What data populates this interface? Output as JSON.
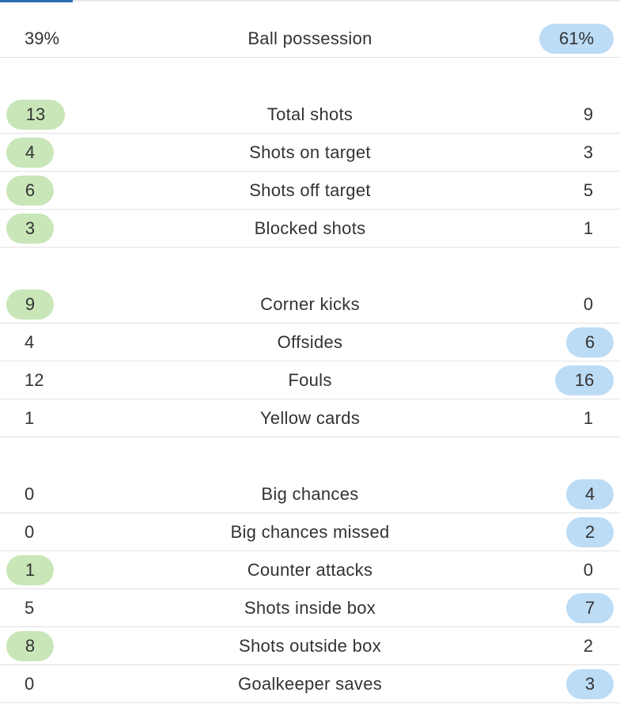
{
  "colors": {
    "home_highlight": "#c9e6b8",
    "away_highlight": "#bcdcf6",
    "tab_indicator": "#2e6db5",
    "divider": "#e3e3e3",
    "text": "#333333"
  },
  "stats": [
    {
      "home": "39%",
      "label": "Ball possession",
      "away": "61%",
      "leader": "away"
    },
    {
      "home": "13",
      "label": "Total shots",
      "away": "9",
      "leader": "home"
    },
    {
      "home": "4",
      "label": "Shots on target",
      "away": "3",
      "leader": "home"
    },
    {
      "home": "6",
      "label": "Shots off target",
      "away": "5",
      "leader": "home"
    },
    {
      "home": "3",
      "label": "Blocked shots",
      "away": "1",
      "leader": "home"
    },
    {
      "home": "9",
      "label": "Corner kicks",
      "away": "0",
      "leader": "home"
    },
    {
      "home": "4",
      "label": "Offsides",
      "away": "6",
      "leader": "away"
    },
    {
      "home": "12",
      "label": "Fouls",
      "away": "16",
      "leader": "away"
    },
    {
      "home": "1",
      "label": "Yellow cards",
      "away": "1",
      "leader": "none"
    },
    {
      "home": "0",
      "label": "Big chances",
      "away": "4",
      "leader": "away"
    },
    {
      "home": "0",
      "label": "Big chances missed",
      "away": "2",
      "leader": "away"
    },
    {
      "home": "1",
      "label": "Counter attacks",
      "away": "0",
      "leader": "home"
    },
    {
      "home": "5",
      "label": "Shots inside box",
      "away": "7",
      "leader": "away"
    },
    {
      "home": "8",
      "label": "Shots outside box",
      "away": "2",
      "leader": "home"
    },
    {
      "home": "0",
      "label": "Goalkeeper saves",
      "away": "3",
      "leader": "away"
    }
  ]
}
